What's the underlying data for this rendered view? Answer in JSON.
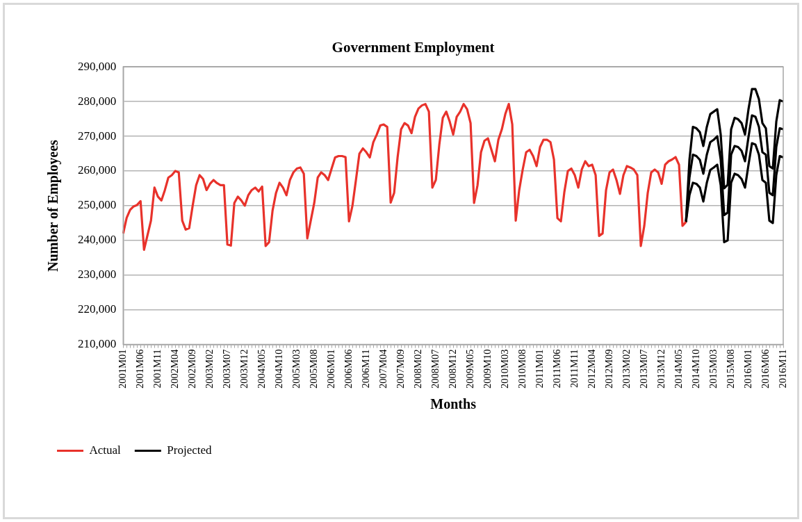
{
  "chart_data": {
    "type": "line",
    "title": "Government Employment",
    "xlabel": "Months",
    "ylabel": "Number of Employees",
    "categories": [
      "2001M01",
      null,
      null,
      null,
      null,
      "2001M06",
      null,
      null,
      null,
      null,
      "2001M11",
      null,
      null,
      null,
      null,
      "2002M04",
      null,
      null,
      null,
      null,
      "2002M09",
      null,
      null,
      null,
      null,
      "2003M02",
      null,
      null,
      null,
      null,
      "2003M07",
      null,
      null,
      null,
      null,
      "2003M12",
      null,
      null,
      null,
      null,
      "2004M05",
      null,
      null,
      null,
      null,
      "2004M10",
      null,
      null,
      null,
      null,
      "2005M03",
      null,
      null,
      null,
      null,
      "2005M08",
      null,
      null,
      null,
      null,
      "2006M01",
      null,
      null,
      null,
      null,
      "2006M06",
      null,
      null,
      null,
      null,
      "2006M11",
      null,
      null,
      null,
      null,
      "2007M04",
      null,
      null,
      null,
      null,
      "2007M09",
      null,
      null,
      null,
      null,
      "2008M02",
      null,
      null,
      null,
      null,
      "2008M07",
      null,
      null,
      null,
      null,
      "2008M12",
      null,
      null,
      null,
      null,
      "2009M05",
      null,
      null,
      null,
      null,
      "2009M10",
      null,
      null,
      null,
      null,
      "2010M03",
      null,
      null,
      null,
      null,
      "2010M08",
      null,
      null,
      null,
      null,
      "2011M01",
      null,
      null,
      null,
      null,
      "2011M06",
      null,
      null,
      null,
      null,
      "2011M11",
      null,
      null,
      null,
      null,
      "2012M04",
      null,
      null,
      null,
      null,
      "2012M09",
      null,
      null,
      null,
      null,
      "2013M02",
      null,
      null,
      null,
      null,
      "2013M07",
      null,
      null,
      null,
      null,
      "2013M12",
      null,
      null,
      null,
      null,
      "2014M05",
      null,
      null,
      null,
      null,
      "2014M10",
      null,
      null,
      null,
      null,
      "2015M03",
      null,
      null,
      null,
      null,
      "2015M08",
      null,
      null,
      null,
      null,
      "2016M01",
      null,
      null,
      null,
      null,
      "2016M06",
      null,
      null,
      null,
      null,
      "2016M11"
    ],
    "series": [
      {
        "name": "Actual",
        "color": "#e8322b",
        "values": [
          242000,
          246500,
          248800,
          249800,
          250200,
          251300,
          237300,
          241500,
          245700,
          255200,
          252600,
          251500,
          254500,
          258100,
          258800,
          260000,
          259600,
          245700,
          243100,
          243500,
          250000,
          255900,
          258800,
          257700,
          254500,
          256300,
          257400,
          256500,
          255900,
          255900,
          238800,
          238500,
          250800,
          252600,
          251500,
          250000,
          253000,
          254500,
          255200,
          254100,
          255500,
          238400,
          239500,
          248600,
          253700,
          256600,
          255200,
          253000,
          257400,
          259600,
          260700,
          261000,
          259200,
          240600,
          245700,
          250800,
          258100,
          259600,
          258800,
          257400,
          260700,
          263900,
          264300,
          264300,
          264000,
          245500,
          250000,
          257400,
          265000,
          266500,
          265400,
          263900,
          268300,
          270500,
          273100,
          273400,
          272700,
          250900,
          253700,
          264000,
          272000,
          273800,
          273100,
          270900,
          275600,
          278000,
          278900,
          279300,
          277100,
          255200,
          257400,
          267600,
          275300,
          277100,
          274200,
          270500,
          275600,
          277100,
          279300,
          277800,
          273800,
          250800,
          255900,
          265400,
          268700,
          269400,
          266100,
          262800,
          269000,
          272000,
          276400,
          279300,
          273400,
          245700,
          254500,
          260400,
          265400,
          266100,
          264300,
          261400,
          266900,
          269000,
          269000,
          268300,
          263300,
          246400,
          245500,
          254000,
          260000,
          260700,
          258800,
          255200,
          260400,
          262800,
          261400,
          261800,
          258800,
          241300,
          242000,
          254500,
          259600,
          260400,
          257400,
          253400,
          258800,
          261400,
          261000,
          260400,
          258800,
          238400,
          244200,
          253700,
          259600,
          260400,
          259600,
          256300,
          261800,
          262800,
          263300,
          264000,
          261800,
          244200,
          245300,
          null,
          null,
          null,
          null,
          null,
          null,
          null,
          null,
          null,
          null,
          null,
          null,
          null,
          null,
          null,
          null,
          null,
          null,
          null,
          null,
          null,
          null,
          null,
          null,
          null,
          null,
          null,
          null
        ]
      },
      {
        "name": "Projected",
        "color": "#000000",
        "values": [
          null,
          null,
          null,
          null,
          null,
          null,
          null,
          null,
          null,
          null,
          null,
          null,
          null,
          null,
          null,
          null,
          null,
          null,
          null,
          null,
          null,
          null,
          null,
          null,
          null,
          null,
          null,
          null,
          null,
          null,
          null,
          null,
          null,
          null,
          null,
          null,
          null,
          null,
          null,
          null,
          null,
          null,
          null,
          null,
          null,
          null,
          null,
          null,
          null,
          null,
          null,
          null,
          null,
          null,
          null,
          null,
          null,
          null,
          null,
          null,
          null,
          null,
          null,
          null,
          null,
          null,
          null,
          null,
          null,
          null,
          null,
          null,
          null,
          null,
          null,
          null,
          null,
          null,
          null,
          null,
          null,
          null,
          null,
          null,
          null,
          null,
          null,
          null,
          null,
          null,
          null,
          null,
          null,
          null,
          null,
          null,
          null,
          null,
          null,
          null,
          null,
          null,
          null,
          null,
          null,
          null,
          null,
          null,
          null,
          null,
          null,
          null,
          null,
          null,
          null,
          null,
          null,
          null,
          null,
          null,
          null,
          null,
          null,
          null,
          null,
          null,
          null,
          null,
          null,
          null,
          null,
          null,
          null,
          null,
          null,
          null,
          null,
          null,
          null,
          null,
          null,
          null,
          null,
          null,
          null,
          null,
          null,
          null,
          null,
          null,
          null,
          null,
          null,
          null,
          null,
          null,
          null,
          null,
          null,
          null,
          null,
          null,
          245300,
          263200,
          272700,
          272300,
          271200,
          267200,
          272700,
          276400,
          277100,
          277800,
          270500,
          255000,
          256000,
          272000,
          275300,
          274900,
          273800,
          270500,
          277800,
          283600,
          283600,
          280700,
          273800,
          272300,
          261400,
          260700,
          274200,
          280400,
          280000
        ]
      },
      {
        "color": "#000000",
        "values": [
          null,
          null,
          null,
          null,
          null,
          null,
          null,
          null,
          null,
          null,
          null,
          null,
          null,
          null,
          null,
          null,
          null,
          null,
          null,
          null,
          null,
          null,
          null,
          null,
          null,
          null,
          null,
          null,
          null,
          null,
          null,
          null,
          null,
          null,
          null,
          null,
          null,
          null,
          null,
          null,
          null,
          null,
          null,
          null,
          null,
          null,
          null,
          null,
          null,
          null,
          null,
          null,
          null,
          null,
          null,
          null,
          null,
          null,
          null,
          null,
          null,
          null,
          null,
          null,
          null,
          null,
          null,
          null,
          null,
          null,
          null,
          null,
          null,
          null,
          null,
          null,
          null,
          null,
          null,
          null,
          null,
          null,
          null,
          null,
          null,
          null,
          null,
          null,
          null,
          null,
          null,
          null,
          null,
          null,
          null,
          null,
          null,
          null,
          null,
          null,
          null,
          null,
          null,
          null,
          null,
          null,
          null,
          null,
          null,
          null,
          null,
          null,
          null,
          null,
          null,
          null,
          null,
          null,
          null,
          null,
          null,
          null,
          null,
          null,
          null,
          null,
          null,
          null,
          null,
          null,
          null,
          null,
          null,
          null,
          null,
          null,
          null,
          null,
          null,
          null,
          null,
          null,
          null,
          null,
          null,
          null,
          null,
          null,
          null,
          null,
          null,
          null,
          null,
          null,
          null,
          null,
          null,
          null,
          null,
          null,
          null,
          null,
          245300,
          258100,
          264700,
          264300,
          263200,
          259200,
          264700,
          268300,
          269000,
          270000,
          263300,
          247300,
          248000,
          264700,
          267200,
          266900,
          265800,
          262800,
          269800,
          276000,
          275600,
          272700,
          265400,
          264700,
          253700,
          253000,
          266900,
          272300,
          272000
        ]
      },
      {
        "color": "#000000",
        "values": [
          null,
          null,
          null,
          null,
          null,
          null,
          null,
          null,
          null,
          null,
          null,
          null,
          null,
          null,
          null,
          null,
          null,
          null,
          null,
          null,
          null,
          null,
          null,
          null,
          null,
          null,
          null,
          null,
          null,
          null,
          null,
          null,
          null,
          null,
          null,
          null,
          null,
          null,
          null,
          null,
          null,
          null,
          null,
          null,
          null,
          null,
          null,
          null,
          null,
          null,
          null,
          null,
          null,
          null,
          null,
          null,
          null,
          null,
          null,
          null,
          null,
          null,
          null,
          null,
          null,
          null,
          null,
          null,
          null,
          null,
          null,
          null,
          null,
          null,
          null,
          null,
          null,
          null,
          null,
          null,
          null,
          null,
          null,
          null,
          null,
          null,
          null,
          null,
          null,
          null,
          null,
          null,
          null,
          null,
          null,
          null,
          null,
          null,
          null,
          null,
          null,
          null,
          null,
          null,
          null,
          null,
          null,
          null,
          null,
          null,
          null,
          null,
          null,
          null,
          null,
          null,
          null,
          null,
          null,
          null,
          null,
          null,
          null,
          null,
          null,
          null,
          null,
          null,
          null,
          null,
          null,
          null,
          null,
          null,
          null,
          null,
          null,
          null,
          null,
          null,
          null,
          null,
          null,
          null,
          null,
          null,
          null,
          null,
          null,
          null,
          null,
          null,
          null,
          null,
          null,
          null,
          null,
          null,
          null,
          null,
          null,
          null,
          245300,
          253000,
          256600,
          256300,
          255200,
          251200,
          256600,
          260300,
          261000,
          261800,
          255900,
          239500,
          240000,
          256600,
          259200,
          258800,
          257700,
          255200,
          261800,
          268000,
          267600,
          264700,
          257400,
          256600,
          245700,
          245000,
          258800,
          264300,
          263900
        ]
      }
    ],
    "ylim": [
      210000,
      290000
    ],
    "yticks": [
      {
        "value": 210000,
        "label": "210,000"
      },
      {
        "value": 220000,
        "label": "220,000"
      },
      {
        "value": 230000,
        "label": "230,000"
      },
      {
        "value": 240000,
        "label": "240,000"
      },
      {
        "value": 250000,
        "label": "250,000"
      },
      {
        "value": 260000,
        "label": "260,000"
      },
      {
        "value": 270000,
        "label": "270,000"
      },
      {
        "value": 280000,
        "label": "280,000"
      },
      {
        "value": 290000,
        "label": "290,000"
      }
    ],
    "grid": "y",
    "legend": "bottom left",
    "marker": "none",
    "line_style": "solid"
  }
}
